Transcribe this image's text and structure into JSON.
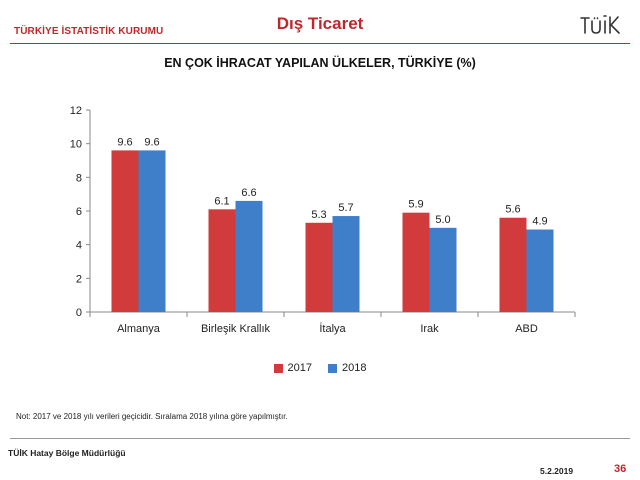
{
  "header": {
    "org": "TÜRKİYE İSTATİSTİK KURUMU",
    "title": "Dış Ticaret",
    "logo_text": "TÜİK"
  },
  "colors": {
    "accent": "#c0272d",
    "series_2017": "#d23b3b",
    "series_2018": "#3f7fc9"
  },
  "chart_data": {
    "type": "bar",
    "title": "EN ÇOK İHRACAT YAPILAN ÜLKELER, TÜRKİYE (%)",
    "categories": [
      "Almanya",
      "Birleşik Krallık",
      "İtalya",
      "Irak",
      "ABD"
    ],
    "series": [
      {
        "name": "2017",
        "values": [
          9.6,
          6.1,
          5.3,
          5.9,
          5.6
        ]
      },
      {
        "name": "2018",
        "values": [
          9.6,
          6.6,
          5.7,
          5.0,
          4.9
        ]
      }
    ],
    "ylim": [
      0,
      12
    ],
    "yticks": [
      0,
      2,
      4,
      6,
      8,
      10,
      12
    ],
    "legend": "bottom",
    "grid": false
  },
  "note": "Not: 2017 ve 2018 yılı verileri geçicidir. Sıralama 2018 yılına  göre yapılmıştır.",
  "footer": {
    "office": "TÜİK Hatay Bölge Müdürlüğü",
    "date": "5.2.2019",
    "page": "36"
  }
}
